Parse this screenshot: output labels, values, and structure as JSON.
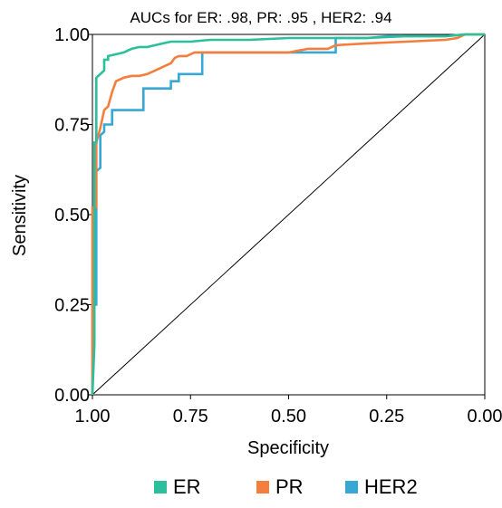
{
  "chart_data": {
    "type": "line",
    "title": "AUCs for ER: .98, PR: .95 , HER2: .94",
    "xlabel": "Specificity",
    "ylabel": "Sensitivity",
    "xlim": [
      1.0,
      0.0
    ],
    "ylim": [
      0.0,
      1.0
    ],
    "x_reversed": true,
    "x_ticks": [
      "1.00",
      "0.75",
      "0.50",
      "0.25",
      "0.00"
    ],
    "x_tick_values": [
      1.0,
      0.75,
      0.5,
      0.25,
      0.0
    ],
    "y_ticks": [
      "0.00",
      "0.25",
      "0.50",
      "0.75",
      "1.00"
    ],
    "y_tick_values": [
      0.0,
      0.25,
      0.5,
      0.75,
      1.0
    ],
    "grid": false,
    "legend_position": "bottom",
    "reference_line": {
      "from": [
        1.0,
        0.0
      ],
      "to": [
        0.0,
        1.0
      ],
      "color": "#000000"
    },
    "series": [
      {
        "name": "ER",
        "color": "#2bbf9b",
        "points": [
          [
            1.0,
            0.0
          ],
          [
            0.995,
            0.14
          ],
          [
            0.995,
            0.7
          ],
          [
            0.99,
            0.7
          ],
          [
            0.99,
            0.88
          ],
          [
            0.98,
            0.89
          ],
          [
            0.97,
            0.9
          ],
          [
            0.97,
            0.93
          ],
          [
            0.96,
            0.93
          ],
          [
            0.96,
            0.94
          ],
          [
            0.94,
            0.945
          ],
          [
            0.92,
            0.95
          ],
          [
            0.9,
            0.96
          ],
          [
            0.88,
            0.965
          ],
          [
            0.86,
            0.965
          ],
          [
            0.84,
            0.97
          ],
          [
            0.82,
            0.975
          ],
          [
            0.8,
            0.98
          ],
          [
            0.75,
            0.98
          ],
          [
            0.7,
            0.985
          ],
          [
            0.6,
            0.985
          ],
          [
            0.5,
            0.99
          ],
          [
            0.4,
            0.99
          ],
          [
            0.3,
            0.99
          ],
          [
            0.2,
            0.995
          ],
          [
            0.1,
            0.995
          ],
          [
            0.05,
            1.0
          ],
          [
            0.0,
            1.0
          ]
        ]
      },
      {
        "name": "PR",
        "color": "#f47f3c",
        "points": [
          [
            1.0,
            0.0
          ],
          [
            1.0,
            0.52
          ],
          [
            0.99,
            0.52
          ],
          [
            0.99,
            0.7
          ],
          [
            0.985,
            0.72
          ],
          [
            0.98,
            0.74
          ],
          [
            0.97,
            0.79
          ],
          [
            0.96,
            0.8
          ],
          [
            0.95,
            0.84
          ],
          [
            0.94,
            0.87
          ],
          [
            0.92,
            0.88
          ],
          [
            0.9,
            0.885
          ],
          [
            0.88,
            0.885
          ],
          [
            0.86,
            0.89
          ],
          [
            0.84,
            0.9
          ],
          [
            0.82,
            0.91
          ],
          [
            0.8,
            0.92
          ],
          [
            0.79,
            0.935
          ],
          [
            0.78,
            0.94
          ],
          [
            0.76,
            0.94
          ],
          [
            0.74,
            0.95
          ],
          [
            0.7,
            0.95
          ],
          [
            0.5,
            0.95
          ],
          [
            0.45,
            0.96
          ],
          [
            0.4,
            0.96
          ],
          [
            0.38,
            0.97
          ],
          [
            0.3,
            0.975
          ],
          [
            0.2,
            0.98
          ],
          [
            0.1,
            0.985
          ],
          [
            0.07,
            0.99
          ],
          [
            0.05,
            1.0
          ],
          [
            0.0,
            1.0
          ]
        ]
      },
      {
        "name": "HER2",
        "color": "#37a8d6",
        "points": [
          [
            1.0,
            0.0
          ],
          [
            1.0,
            0.25
          ],
          [
            0.99,
            0.25
          ],
          [
            0.99,
            0.62
          ],
          [
            0.98,
            0.63
          ],
          [
            0.98,
            0.72
          ],
          [
            0.97,
            0.73
          ],
          [
            0.97,
            0.75
          ],
          [
            0.95,
            0.75
          ],
          [
            0.95,
            0.79
          ],
          [
            0.87,
            0.79
          ],
          [
            0.87,
            0.85
          ],
          [
            0.8,
            0.85
          ],
          [
            0.8,
            0.87
          ],
          [
            0.78,
            0.87
          ],
          [
            0.78,
            0.89
          ],
          [
            0.72,
            0.89
          ],
          [
            0.72,
            0.95
          ],
          [
            0.38,
            0.95
          ],
          [
            0.38,
            0.99
          ],
          [
            0.3,
            0.99
          ],
          [
            0.25,
            0.995
          ],
          [
            0.1,
            0.995
          ],
          [
            0.05,
            1.0
          ],
          [
            0.0,
            1.0
          ]
        ]
      }
    ]
  }
}
